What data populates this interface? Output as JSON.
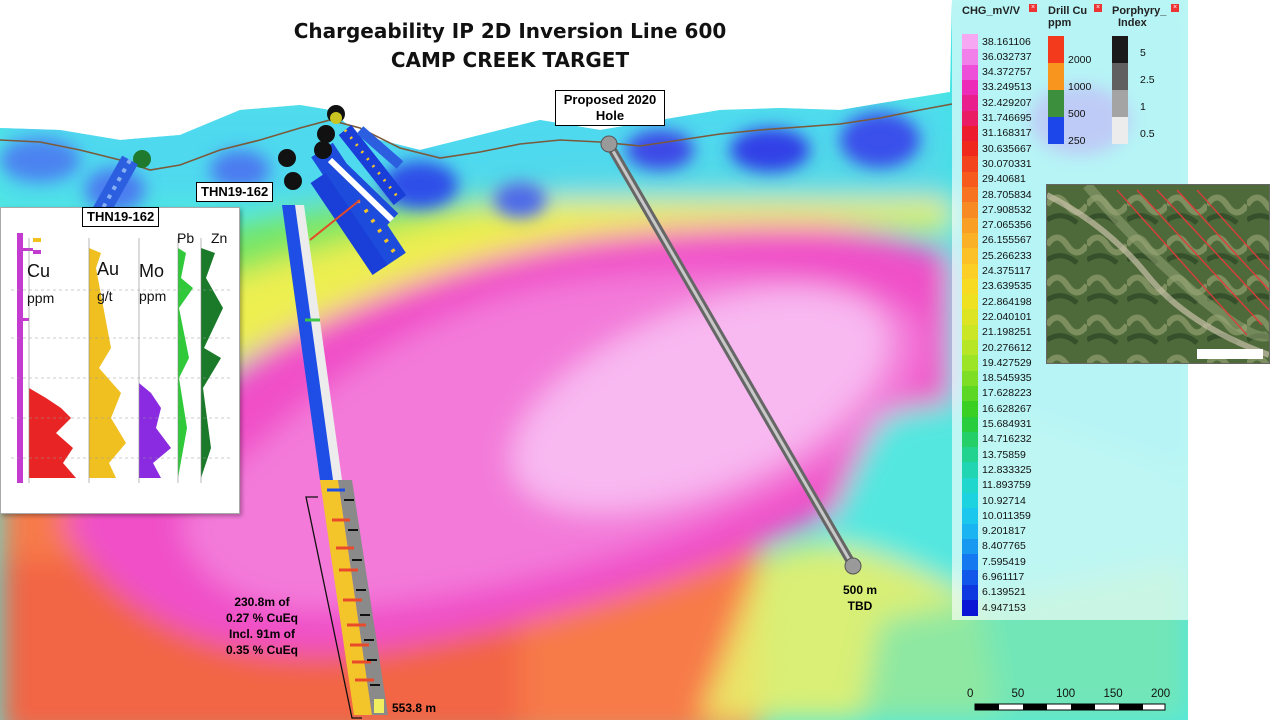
{
  "title": {
    "line1": "Chargeability IP 2D Inversion Line 600",
    "line2": "CAMP CREEK TARGET"
  },
  "callouts": {
    "proposed_hole": "Proposed 2020 Hole",
    "thn_main": "THN19-162",
    "thn_log": "THN19-162"
  },
  "annotations": {
    "intercept_line1": "230.8m of",
    "intercept_line2": "0.27 % CuEq",
    "intercept_line3": "Incl. 91m of",
    "intercept_line4": "0.35 % CuEq",
    "depth_end": "553.8 m",
    "proposed_depth": "500 m",
    "proposed_tbd": "TBD"
  },
  "log_panel": {
    "cu": "Cu",
    "cu_unit": "ppm",
    "au": "Au",
    "au_unit": "g/t",
    "mo": "Mo",
    "mo_unit": "ppm",
    "pb": "Pb",
    "zn": "Zn"
  },
  "legend": {
    "chg_title": "CHG_mV/V",
    "cu_title_1": "Drill Cu",
    "cu_title_2": "ppm",
    "pi_title_1": "Porphyry_",
    "pi_title_2": "Index",
    "chg_values": [
      "38.161106",
      "36.032737",
      "34.372757",
      "33.249513",
      "32.429207",
      "31.746695",
      "31.168317",
      "30.635667",
      "30.070331",
      "29.40681",
      "28.705834",
      "27.908532",
      "27.065356",
      "26.155567",
      "25.266233",
      "24.375117",
      "23.639535",
      "22.864198",
      "22.040101",
      "21.198251",
      "20.276612",
      "19.427529",
      "18.545935",
      "17.628223",
      "16.628267",
      "15.684931",
      "14.716232",
      "13.75859",
      "12.833325",
      "11.893759",
      "10.92714",
      "10.011359",
      "9.201817",
      "8.407765",
      "7.595419",
      "6.961117",
      "6.139521",
      "4.947153"
    ],
    "chg_colors": [
      "#f7a8f2",
      "#f280ea",
      "#ee4fd8",
      "#ec2cb9",
      "#ea1f8e",
      "#ea1c64",
      "#ec1c2e",
      "#ef2a1c",
      "#f3431c",
      "#f65a1d",
      "#f77322",
      "#f88a24",
      "#f99f26",
      "#fab127",
      "#fbc127",
      "#fccf26",
      "#f7da22",
      "#eee122",
      "#dde424",
      "#cbe625",
      "#b6e626",
      "#9ce426",
      "#7ede25",
      "#5cd824",
      "#3ad023",
      "#27cd3c",
      "#25cf67",
      "#22d38f",
      "#20d6b2",
      "#1fd7cc",
      "#1dd3df",
      "#1bc7ec",
      "#19b4f1",
      "#1799f2",
      "#1479f0",
      "#1158ea",
      "#0e38e0",
      "#0a14d4"
    ],
    "cu_labels": [
      "2000",
      "1000",
      "500",
      "250"
    ],
    "cu_colors": [
      "#f33a1c",
      "#f8951f",
      "#3c8f3d",
      "#1c46ea"
    ],
    "pi_labels": [
      "5",
      "2.5",
      "1",
      "0.5"
    ],
    "pi_colors": [
      "#1a1a1a",
      "#606060",
      "#a4a4a4",
      "#ececec"
    ]
  },
  "scale_bar": {
    "labels": [
      "0",
      "50",
      "100",
      "150",
      "200"
    ]
  },
  "chart_data": {
    "type": "heatmap",
    "title": "Chargeability IP 2D Inversion Line 600",
    "subtitle": "CAMP CREEK TARGET",
    "colorbar_label": "CHG_mV/V",
    "colorbar_values": [
      38.161106,
      36.032737,
      34.372757,
      33.249513,
      32.429207,
      31.746695,
      31.168317,
      30.635667,
      30.070331,
      29.40681,
      28.705834,
      27.908532,
      27.065356,
      26.155567,
      25.266233,
      24.375117,
      23.639535,
      22.864198,
      22.040101,
      21.198251,
      20.276612,
      19.427529,
      18.545935,
      17.628223,
      16.628267,
      15.684931,
      14.716232,
      13.75859,
      12.833325,
      11.893759,
      10.92714,
      10.011359,
      9.201817,
      8.407765,
      7.595419,
      6.961117,
      6.139521,
      4.947153
    ],
    "drill_holes": [
      {
        "name": "THN19-162",
        "depth_m": 553.8
      },
      {
        "name": "Proposed 2020 Hole",
        "depth_m": 500
      }
    ],
    "scale_labels": [
      0,
      50,
      100,
      150,
      200
    ]
  }
}
